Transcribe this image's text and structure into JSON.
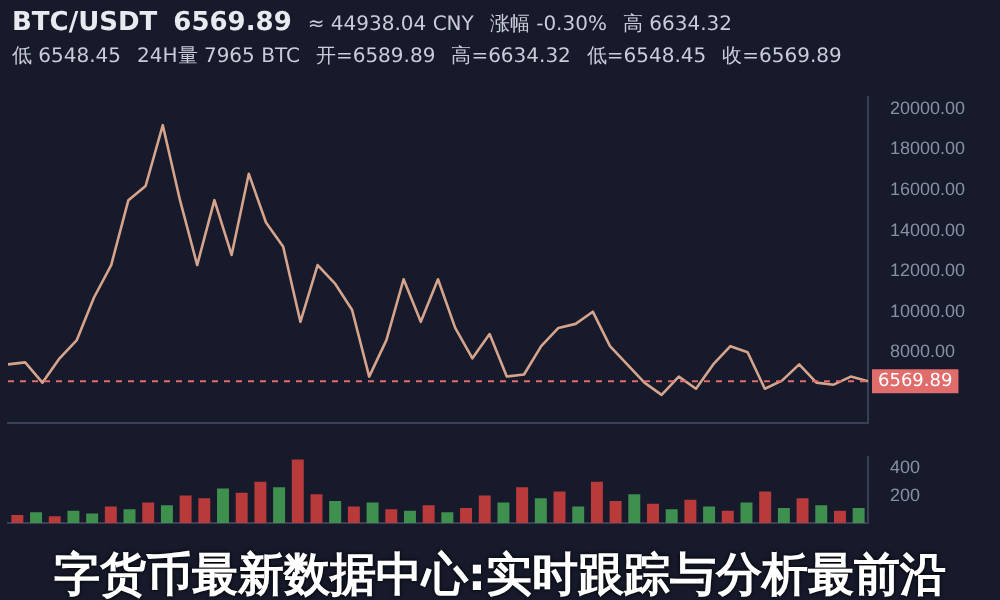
{
  "chart_data": [
    {
      "type": "line",
      "annotations": [
        "BTC/USDT",
        "6569.89",
        "≈ 44938.04 CNY",
        "涨幅 -0.30%",
        "高 6634.32",
        "低 6548.45",
        "24H量 7965 BTC",
        "开=6589.89",
        "高=6634.32",
        "低=6548.45",
        "收=6569.89"
      ],
      "categories": [
        null,
        null,
        null,
        null,
        null,
        null,
        null,
        null,
        null,
        null,
        null,
        null,
        null,
        null,
        null,
        null,
        null,
        null,
        null,
        null,
        null,
        null,
        null,
        null,
        null,
        null,
        null,
        null,
        null,
        null,
        null,
        null,
        null,
        null,
        null,
        null,
        null,
        null,
        null,
        null,
        null,
        null,
        null,
        null,
        null,
        null,
        null,
        null,
        null,
        null,
        null
      ],
      "series": [
        {
          "color": "#d6a48c",
          "values": [
            7400,
            7500,
            6500,
            7700,
            8600,
            10700,
            12300,
            15500,
            16200,
            19200,
            15500,
            12300,
            15500,
            12800,
            16800,
            14400,
            13200,
            9500,
            12300,
            11400,
            10100,
            6800,
            8600,
            11600,
            9500,
            11600,
            9200,
            7700,
            8900,
            6800,
            6900,
            8300,
            9200,
            9400,
            10000,
            8300,
            7400,
            6500,
            5900,
            6800,
            6200,
            7400,
            8300,
            8000,
            6200,
            6600,
            7400,
            6500,
            6400,
            6800,
            6570
          ]
        }
      ],
      "ylim": [
        4500,
        20600
      ],
      "yticks": [
        {
          "value": 8000,
          "label": "8000.00"
        },
        {
          "value": 10000,
          "label": "10000.00"
        },
        {
          "value": 12000,
          "label": "12000.00"
        },
        {
          "value": 14000,
          "label": "14000.00"
        },
        {
          "value": 16000,
          "label": "16000.00"
        },
        {
          "value": 18000,
          "label": "18000.00"
        },
        {
          "value": 20000,
          "label": "20000.00"
        }
      ],
      "ref_lines": [
        {
          "axis": "y",
          "value": 6569.89,
          "label": "6569.89",
          "color": "#e06c6c"
        }
      ],
      "tick_labels": "y",
      "grid": false,
      "legend": false
    },
    {
      "type": "bar",
      "title": "字货币最新数据中心:实时跟踪与分析最前沿",
      "categories": [
        null,
        null,
        null,
        null,
        null,
        null,
        null,
        null,
        null,
        null,
        null,
        null,
        null,
        null,
        null,
        null,
        null,
        null,
        null,
        null,
        null,
        null,
        null,
        null,
        null,
        null,
        null,
        null,
        null,
        null,
        null,
        null,
        null,
        null,
        null,
        null,
        null,
        null,
        null,
        null,
        null,
        null,
        null,
        null,
        null,
        null
      ],
      "values": [
        60,
        80,
        50,
        90,
        70,
        120,
        100,
        150,
        130,
        200,
        180,
        250,
        220,
        300,
        260,
        460,
        210,
        160,
        120,
        150,
        100,
        90,
        130,
        80,
        110,
        200,
        150,
        260,
        180,
        230,
        120,
        300,
        160,
        210,
        140,
        100,
        170,
        120,
        90,
        150,
        230,
        110,
        180,
        130,
        90,
        110
      ],
      "colors": [
        "#b83a3a",
        "#3f8f4f",
        "#b83a3a",
        "#3f8f4f",
        "#3f8f4f",
        "#b83a3a",
        "#3f8f4f",
        "#b83a3a",
        "#3f8f4f",
        "#b83a3a",
        "#b83a3a",
        "#3f8f4f",
        "#b83a3a",
        "#b83a3a",
        "#3f8f4f",
        "#b83a3a",
        "#b83a3a",
        "#3f8f4f",
        "#b83a3a",
        "#3f8f4f",
        "#b83a3a",
        "#3f8f4f",
        "#b83a3a",
        "#3f8f4f",
        "#b83a3a",
        "#b83a3a",
        "#3f8f4f",
        "#b83a3a",
        "#3f8f4f",
        "#b83a3a",
        "#3f8f4f",
        "#b83a3a",
        "#b83a3a",
        "#3f8f4f",
        "#b83a3a",
        "#3f8f4f",
        "#b83a3a",
        "#3f8f4f",
        "#b83a3a",
        "#3f8f4f",
        "#b83a3a",
        "#3f8f4f",
        "#b83a3a",
        "#3f8f4f",
        "#b83a3a",
        "#3f8f4f"
      ],
      "ylim": [
        0,
        480
      ],
      "yticks": [
        200,
        400
      ],
      "tick_labels": "y",
      "grid": false,
      "legend": false
    }
  ]
}
